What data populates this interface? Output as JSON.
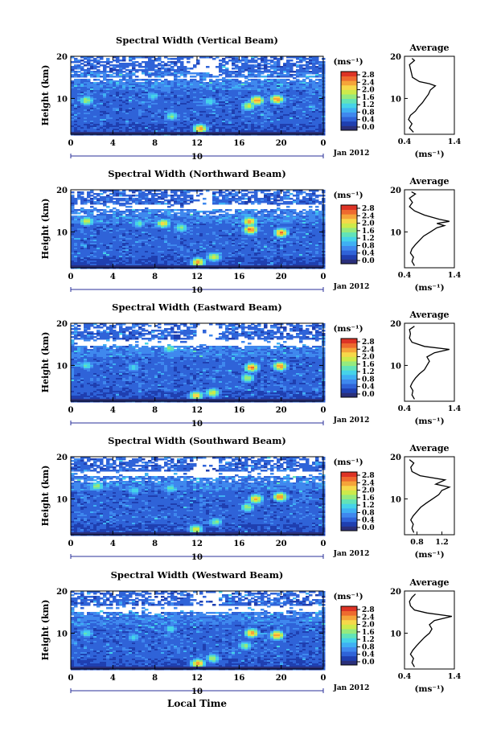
{
  "figure": {
    "xlabel": "Local Time",
    "date_label": "Jan 2012",
    "colorbar_unit": "(ms⁻¹)",
    "avg_title": "Average",
    "avg_unit": "(ms⁻¹)",
    "ylabel": "Height (km)"
  },
  "colormap": [
    "#2a2f7a",
    "#1f3fb0",
    "#2f63d8",
    "#3f88ee",
    "#3fb0f3",
    "#46d3e8",
    "#62e3b8",
    "#95ea7e",
    "#cdea4b",
    "#f6d84a",
    "#f5a43a",
    "#ee6a2f",
    "#dd3325"
  ],
  "chart_data": [
    {
      "type": "heatmap",
      "title": "Spectral Width (Vertical Beam)",
      "xlabel": "Local Time",
      "ylabel": "Height (km)",
      "x_ticks": [
        "0",
        "4",
        "8",
        "12",
        "16",
        "20",
        "0"
      ],
      "x_day_label": "10",
      "y_ticks": [
        "10",
        "20"
      ],
      "xlim": [
        0,
        24
      ],
      "ylim": [
        1.5,
        20
      ],
      "colorbar_ticks": [
        "0.0",
        "0.4",
        "0.8",
        "1.2",
        "1.6",
        "2.0",
        "2.4",
        "2.8"
      ],
      "avg_xticks": [
        "0.4",
        "1.4"
      ],
      "avg_xlim": [
        0.4,
        1.4
      ],
      "avg_profile": [
        {
          "h": 2,
          "v": 0.58
        },
        {
          "h": 3,
          "v": 0.5
        },
        {
          "h": 4,
          "v": 0.55
        },
        {
          "h": 5,
          "v": 0.48
        },
        {
          "h": 6,
          "v": 0.52
        },
        {
          "h": 7,
          "v": 0.62
        },
        {
          "h": 8,
          "v": 0.68
        },
        {
          "h": 9,
          "v": 0.76
        },
        {
          "h": 10,
          "v": 0.82
        },
        {
          "h": 11,
          "v": 0.88
        },
        {
          "h": 12,
          "v": 0.92
        },
        {
          "h": 13,
          "v": 1.02
        },
        {
          "h": 13.5,
          "v": 0.9
        },
        {
          "h": 14,
          "v": 0.7
        },
        {
          "h": 15,
          "v": 0.56
        },
        {
          "h": 16,
          "v": 0.54
        },
        {
          "h": 17,
          "v": 0.52
        },
        {
          "h": 18,
          "v": 0.5
        },
        {
          "h": 19,
          "v": 0.6
        },
        {
          "h": 19.5,
          "v": 0.55
        }
      ],
      "hotspots": [
        {
          "t": 17.7,
          "h": 9.5,
          "v": 2.8
        },
        {
          "t": 19.6,
          "h": 9.8,
          "v": 2.8
        },
        {
          "t": 12.3,
          "h": 2.8,
          "v": 2.7
        },
        {
          "t": 16.9,
          "h": 8.2,
          "v": 2.2
        },
        {
          "t": 1.5,
          "h": 9.5,
          "v": 2.0
        },
        {
          "t": 9.6,
          "h": 5.8,
          "v": 1.8
        },
        {
          "t": 13.2,
          "h": 9.2,
          "v": 1.5
        },
        {
          "t": 7.8,
          "h": 10.5,
          "v": 1.5
        }
      ],
      "gaps": [
        {
          "t0": 0.2,
          "t1": 23.8,
          "h0": 14.5,
          "h1": 15.2
        },
        {
          "t0": 11,
          "t1": 14,
          "h0": 16,
          "h1": 19.5
        }
      ]
    },
    {
      "type": "heatmap",
      "title": "Spectral Width (Northward Beam)",
      "xlabel": "Local Time",
      "ylabel": "Height (km)",
      "x_ticks": [
        "0",
        "4",
        "8",
        "12",
        "16",
        "20",
        "0"
      ],
      "x_day_label": "10",
      "y_ticks": [
        "10",
        "20"
      ],
      "xlim": [
        0,
        24
      ],
      "ylim": [
        1.5,
        20
      ],
      "colorbar_ticks": [
        "0.0",
        "0.4",
        "0.8",
        "1.2",
        "1.6",
        "2.0",
        "2.4",
        "2.8"
      ],
      "avg_xticks": [
        "0.4",
        "1.4"
      ],
      "avg_xlim": [
        0.4,
        1.4
      ],
      "avg_profile": [
        {
          "h": 2,
          "v": 0.6
        },
        {
          "h": 3,
          "v": 0.55
        },
        {
          "h": 4,
          "v": 0.58
        },
        {
          "h": 5,
          "v": 0.52
        },
        {
          "h": 6,
          "v": 0.55
        },
        {
          "h": 7,
          "v": 0.62
        },
        {
          "h": 8,
          "v": 0.7
        },
        {
          "h": 9,
          "v": 0.78
        },
        {
          "h": 10,
          "v": 0.92
        },
        {
          "h": 11,
          "v": 1.05
        },
        {
          "h": 11.5,
          "v": 1.2
        },
        {
          "h": 12,
          "v": 1.05
        },
        {
          "h": 12.5,
          "v": 1.3
        },
        {
          "h": 13,
          "v": 1.1
        },
        {
          "h": 14,
          "v": 0.8
        },
        {
          "h": 15,
          "v": 0.6
        },
        {
          "h": 16,
          "v": 0.5
        },
        {
          "h": 17,
          "v": 0.56
        },
        {
          "h": 18,
          "v": 0.5
        },
        {
          "h": 19,
          "v": 0.62
        },
        {
          "h": 19.5,
          "v": 0.54
        }
      ],
      "hotspots": [
        {
          "t": 17.1,
          "h": 10.5,
          "v": 2.9
        },
        {
          "t": 17.0,
          "h": 12.5,
          "v": 2.7
        },
        {
          "t": 20.0,
          "h": 9.8,
          "v": 2.8
        },
        {
          "t": 12.1,
          "h": 2.8,
          "v": 2.6
        },
        {
          "t": 13.6,
          "h": 4,
          "v": 2.2
        },
        {
          "t": 8.8,
          "h": 12,
          "v": 2.4
        },
        {
          "t": 1.5,
          "h": 12.5,
          "v": 2.2
        },
        {
          "t": 10.5,
          "h": 11,
          "v": 1.8
        },
        {
          "t": 6.5,
          "h": 12,
          "v": 1.6
        }
      ],
      "gaps": [
        {
          "t0": 0.2,
          "t1": 23.8,
          "h0": 15.5,
          "h1": 16.5
        },
        {
          "t0": 11.5,
          "t1": 13.5,
          "h0": 15,
          "h1": 19.8
        }
      ]
    },
    {
      "type": "heatmap",
      "title": "Spectral Width (Eastward Beam)",
      "xlabel": "Local Time",
      "ylabel": "Height (km)",
      "x_ticks": [
        "0",
        "4",
        "8",
        "12",
        "16",
        "20",
        "0"
      ],
      "x_day_label": "10",
      "y_ticks": [
        "10",
        "20"
      ],
      "xlim": [
        0,
        24
      ],
      "ylim": [
        1.5,
        20
      ],
      "colorbar_ticks": [
        "0.0",
        "0.4",
        "0.8",
        "1.2",
        "1.6",
        "2.0",
        "2.4",
        "2.8"
      ],
      "avg_xticks": [
        "0.4",
        "1.4"
      ],
      "avg_xlim": [
        0.4,
        1.4
      ],
      "avg_profile": [
        {
          "h": 2,
          "v": 0.6
        },
        {
          "h": 3,
          "v": 0.55
        },
        {
          "h": 4,
          "v": 0.57
        },
        {
          "h": 5,
          "v": 0.52
        },
        {
          "h": 6,
          "v": 0.56
        },
        {
          "h": 7,
          "v": 0.62
        },
        {
          "h": 8,
          "v": 0.7
        },
        {
          "h": 9,
          "v": 0.8
        },
        {
          "h": 10,
          "v": 0.85
        },
        {
          "h": 11,
          "v": 0.9
        },
        {
          "h": 12,
          "v": 0.85
        },
        {
          "h": 13,
          "v": 1.0
        },
        {
          "h": 13.8,
          "v": 1.3
        },
        {
          "h": 14.5,
          "v": 0.8
        },
        {
          "h": 15.5,
          "v": 0.55
        },
        {
          "h": 16.5,
          "v": 0.5
        },
        {
          "h": 17.5,
          "v": 0.52
        },
        {
          "h": 18.5,
          "v": 0.5
        },
        {
          "h": 19.3,
          "v": 0.6
        }
      ],
      "hotspots": [
        {
          "t": 17.2,
          "h": 9.5,
          "v": 2.8
        },
        {
          "t": 19.9,
          "h": 9.8,
          "v": 2.8
        },
        {
          "t": 11.9,
          "h": 2.8,
          "v": 2.5
        },
        {
          "t": 13.5,
          "h": 3.5,
          "v": 2.2
        },
        {
          "t": 16.8,
          "h": 7,
          "v": 2.0
        },
        {
          "t": 9.4,
          "h": 14,
          "v": 1.8
        },
        {
          "t": 1.5,
          "h": 10,
          "v": 1.6
        },
        {
          "t": 6.0,
          "h": 9.5,
          "v": 1.4
        }
      ],
      "gaps": [
        {
          "t0": 0.2,
          "t1": 23.8,
          "h0": 14.8,
          "h1": 16.2
        },
        {
          "t0": 12,
          "t1": 14.2,
          "h0": 15,
          "h1": 19.8
        }
      ]
    },
    {
      "type": "heatmap",
      "title": "Spectral Width (Southward Beam)",
      "xlabel": "Local Time",
      "ylabel": "Height (km)",
      "x_ticks": [
        "0",
        "4",
        "8",
        "12",
        "16",
        "20",
        "0"
      ],
      "x_day_label": "10",
      "y_ticks": [
        "10",
        "20"
      ],
      "xlim": [
        0,
        24
      ],
      "ylim": [
        1.5,
        20
      ],
      "colorbar_ticks": [
        "0.0",
        "0.4",
        "0.8",
        "1.2",
        "1.6",
        "2.0",
        "2.4",
        "2.8"
      ],
      "avg_xticks": [
        "0.8",
        "1.2"
      ],
      "avg_xlim": [
        0.6,
        1.4
      ],
      "avg_profile": [
        {
          "h": 2,
          "v": 0.75
        },
        {
          "h": 3,
          "v": 0.72
        },
        {
          "h": 4,
          "v": 0.74
        },
        {
          "h": 5,
          "v": 0.7
        },
        {
          "h": 6,
          "v": 0.74
        },
        {
          "h": 7,
          "v": 0.8
        },
        {
          "h": 8,
          "v": 0.86
        },
        {
          "h": 9,
          "v": 0.95
        },
        {
          "h": 10,
          "v": 1.05
        },
        {
          "h": 11,
          "v": 1.15
        },
        {
          "h": 12,
          "v": 1.2
        },
        {
          "h": 12.8,
          "v": 1.32
        },
        {
          "h": 13.5,
          "v": 1.1
        },
        {
          "h": 14.5,
          "v": 1.25
        },
        {
          "h": 15.5,
          "v": 0.85
        },
        {
          "h": 16.5,
          "v": 0.72
        },
        {
          "h": 17.5,
          "v": 0.7
        },
        {
          "h": 18.5,
          "v": 0.75
        },
        {
          "h": 19.3,
          "v": 0.68
        }
      ],
      "hotspots": [
        {
          "t": 17.6,
          "h": 10,
          "v": 2.6
        },
        {
          "t": 19.9,
          "h": 10.5,
          "v": 2.8
        },
        {
          "t": 11.9,
          "h": 2.8,
          "v": 2.3
        },
        {
          "t": 2.5,
          "h": 13,
          "v": 2.0
        },
        {
          "t": 16.8,
          "h": 8,
          "v": 2.0
        },
        {
          "t": 13.8,
          "h": 4.5,
          "v": 1.8
        },
        {
          "t": 9.5,
          "h": 12.5,
          "v": 1.6
        },
        {
          "t": 6.0,
          "h": 12,
          "v": 1.5
        }
      ],
      "gaps": [
        {
          "t0": 0.2,
          "t1": 23.8,
          "h0": 15.5,
          "h1": 16.5
        },
        {
          "t0": 11.5,
          "t1": 14,
          "h0": 15,
          "h1": 19.8
        }
      ]
    },
    {
      "type": "heatmap",
      "title": "Spectral Width (Westward Beam)",
      "xlabel": "Local Time",
      "ylabel": "Height (km)",
      "x_ticks": [
        "0",
        "4",
        "8",
        "12",
        "16",
        "20",
        "0"
      ],
      "x_day_label": "10",
      "y_ticks": [
        "10",
        "20"
      ],
      "xlim": [
        0,
        24
      ],
      "ylim": [
        1.5,
        20
      ],
      "colorbar_ticks": [
        "0.0",
        "0.4",
        "0.8",
        "1.2",
        "1.6",
        "2.0",
        "2.4",
        "2.8"
      ],
      "avg_xticks": [
        "0.4",
        "1.4"
      ],
      "avg_xlim": [
        0.4,
        1.4
      ],
      "avg_profile": [
        {
          "h": 2,
          "v": 0.6
        },
        {
          "h": 3,
          "v": 0.55
        },
        {
          "h": 4,
          "v": 0.58
        },
        {
          "h": 5,
          "v": 0.52
        },
        {
          "h": 6,
          "v": 0.57
        },
        {
          "h": 7,
          "v": 0.64
        },
        {
          "h": 8,
          "v": 0.72
        },
        {
          "h": 9,
          "v": 0.8
        },
        {
          "h": 10,
          "v": 0.9
        },
        {
          "h": 11,
          "v": 0.95
        },
        {
          "h": 12,
          "v": 0.9
        },
        {
          "h": 13,
          "v": 1.0
        },
        {
          "h": 14,
          "v": 1.35
        },
        {
          "h": 14.8,
          "v": 0.85
        },
        {
          "h": 15.5,
          "v": 0.6
        },
        {
          "h": 16.5,
          "v": 0.52
        },
        {
          "h": 17.5,
          "v": 0.5
        },
        {
          "h": 18.5,
          "v": 0.55
        },
        {
          "h": 19.3,
          "v": 0.62
        }
      ],
      "hotspots": [
        {
          "t": 17.2,
          "h": 10,
          "v": 2.7
        },
        {
          "t": 19.6,
          "h": 9.5,
          "v": 2.8
        },
        {
          "t": 12.1,
          "h": 2.8,
          "v": 2.7
        },
        {
          "t": 13.5,
          "h": 4,
          "v": 2.0
        },
        {
          "t": 16.6,
          "h": 7,
          "v": 1.9
        },
        {
          "t": 1.5,
          "h": 10,
          "v": 1.6
        },
        {
          "t": 9.5,
          "h": 11,
          "v": 1.5
        },
        {
          "t": 6.0,
          "h": 9,
          "v": 1.4
        }
      ],
      "gaps": [
        {
          "t0": 0.2,
          "t1": 23.8,
          "h0": 15.2,
          "h1": 16.5
        },
        {
          "t0": 11.5,
          "t1": 14,
          "h0": 15,
          "h1": 19.8
        }
      ]
    }
  ]
}
